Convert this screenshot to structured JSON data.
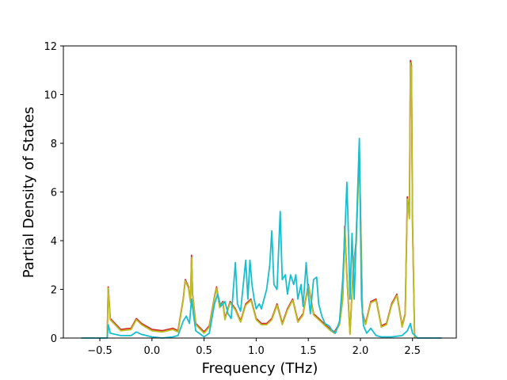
{
  "chart_data": {
    "type": "line",
    "title": "",
    "xlabel": "Frequency (THz)",
    "ylabel": "Partial Density of States",
    "xlim": [
      -0.85,
      2.92
    ],
    "ylim": [
      0,
      12
    ],
    "xticks": [
      -0.5,
      0.0,
      0.5,
      1.0,
      1.5,
      2.0,
      2.5
    ],
    "xtick_labels": [
      "−0.5",
      "0.0",
      "0.5",
      "1.0",
      "1.5",
      "2.0",
      "2.5"
    ],
    "yticks": [
      0,
      2,
      4,
      6,
      8,
      10,
      12
    ],
    "ytick_labels": [
      "0",
      "2",
      "4",
      "6",
      "8",
      "10",
      "12"
    ],
    "grid": false,
    "legend": "none",
    "series": [
      {
        "color": "#d62728",
        "points": [
          [
            -0.43,
            0
          ],
          [
            -0.42,
            2.1
          ],
          [
            -0.4,
            0.8
          ],
          [
            -0.3,
            0.35
          ],
          [
            -0.2,
            0.4
          ],
          [
            -0.15,
            0.8
          ],
          [
            -0.1,
            0.6
          ],
          [
            0.0,
            0.35
          ],
          [
            0.1,
            0.3
          ],
          [
            0.2,
            0.4
          ],
          [
            0.25,
            0.3
          ],
          [
            0.3,
            1.6
          ],
          [
            0.32,
            2.4
          ],
          [
            0.35,
            2.1
          ],
          [
            0.37,
            1.5
          ],
          [
            0.38,
            3.4
          ],
          [
            0.39,
            1.8
          ],
          [
            0.42,
            0.6
          ],
          [
            0.5,
            0.25
          ],
          [
            0.55,
            0.5
          ],
          [
            0.6,
            1.7
          ],
          [
            0.62,
            2.1
          ],
          [
            0.65,
            1.3
          ],
          [
            0.68,
            1.5
          ],
          [
            0.7,
            0.8
          ],
          [
            0.75,
            1.5
          ],
          [
            0.8,
            1.2
          ],
          [
            0.85,
            0.7
          ],
          [
            0.9,
            1.4
          ],
          [
            0.95,
            1.6
          ],
          [
            1.0,
            0.8
          ],
          [
            1.05,
            0.6
          ],
          [
            1.1,
            0.6
          ],
          [
            1.15,
            0.8
          ],
          [
            1.2,
            1.4
          ],
          [
            1.25,
            0.6
          ],
          [
            1.3,
            1.2
          ],
          [
            1.35,
            1.6
          ],
          [
            1.4,
            0.7
          ],
          [
            1.45,
            1.0
          ],
          [
            1.5,
            2.2
          ],
          [
            1.55,
            1.0
          ],
          [
            1.6,
            0.8
          ],
          [
            1.65,
            0.6
          ],
          [
            1.7,
            0.4
          ],
          [
            1.75,
            0.25
          ],
          [
            1.8,
            0.6
          ],
          [
            1.83,
            1.6
          ],
          [
            1.85,
            4.6
          ],
          [
            1.87,
            2.6
          ],
          [
            1.9,
            0.2
          ],
          [
            1.93,
            2.8
          ],
          [
            1.96,
            4.0
          ],
          [
            1.99,
            7.7
          ],
          [
            2.02,
            1.0
          ],
          [
            2.05,
            0.6
          ],
          [
            2.1,
            1.5
          ],
          [
            2.15,
            1.6
          ],
          [
            2.2,
            0.5
          ],
          [
            2.25,
            0.6
          ],
          [
            2.3,
            1.4
          ],
          [
            2.35,
            1.8
          ],
          [
            2.4,
            0.5
          ],
          [
            2.43,
            1.0
          ],
          [
            2.45,
            5.8
          ],
          [
            2.47,
            5.0
          ],
          [
            2.48,
            11.4
          ],
          [
            2.49,
            11.2
          ],
          [
            2.5,
            4.8
          ],
          [
            2.52,
            0.0
          ]
        ]
      },
      {
        "color": "#bcbd22",
        "points": [
          [
            -0.43,
            0
          ],
          [
            -0.42,
            2.05
          ],
          [
            -0.4,
            0.75
          ],
          [
            -0.3,
            0.3
          ],
          [
            -0.2,
            0.35
          ],
          [
            -0.15,
            0.75
          ],
          [
            -0.1,
            0.55
          ],
          [
            0.0,
            0.3
          ],
          [
            0.1,
            0.25
          ],
          [
            0.2,
            0.35
          ],
          [
            0.25,
            0.25
          ],
          [
            0.3,
            1.55
          ],
          [
            0.32,
            2.35
          ],
          [
            0.35,
            2.05
          ],
          [
            0.37,
            1.45
          ],
          [
            0.38,
            3.3
          ],
          [
            0.39,
            1.75
          ],
          [
            0.42,
            0.55
          ],
          [
            0.5,
            0.2
          ],
          [
            0.55,
            0.45
          ],
          [
            0.6,
            1.65
          ],
          [
            0.62,
            2.05
          ],
          [
            0.65,
            1.25
          ],
          [
            0.68,
            1.45
          ],
          [
            0.7,
            0.75
          ],
          [
            0.75,
            1.45
          ],
          [
            0.8,
            1.15
          ],
          [
            0.85,
            0.65
          ],
          [
            0.9,
            1.35
          ],
          [
            0.95,
            1.55
          ],
          [
            1.0,
            0.75
          ],
          [
            1.05,
            0.55
          ],
          [
            1.1,
            0.55
          ],
          [
            1.15,
            0.75
          ],
          [
            1.2,
            1.35
          ],
          [
            1.25,
            0.55
          ],
          [
            1.3,
            1.15
          ],
          [
            1.35,
            1.55
          ],
          [
            1.4,
            0.65
          ],
          [
            1.45,
            0.95
          ],
          [
            1.5,
            2.15
          ],
          [
            1.55,
            0.95
          ],
          [
            1.6,
            0.75
          ],
          [
            1.65,
            0.55
          ],
          [
            1.7,
            0.35
          ],
          [
            1.75,
            0.2
          ],
          [
            1.8,
            0.55
          ],
          [
            1.83,
            1.55
          ],
          [
            1.85,
            4.5
          ],
          [
            1.87,
            2.5
          ],
          [
            1.9,
            0.15
          ],
          [
            1.93,
            2.7
          ],
          [
            1.96,
            3.9
          ],
          [
            1.99,
            7.5
          ],
          [
            2.02,
            0.95
          ],
          [
            2.05,
            0.55
          ],
          [
            2.1,
            1.45
          ],
          [
            2.15,
            1.55
          ],
          [
            2.2,
            0.45
          ],
          [
            2.25,
            0.55
          ],
          [
            2.3,
            1.35
          ],
          [
            2.35,
            1.75
          ],
          [
            2.4,
            0.45
          ],
          [
            2.43,
            0.95
          ],
          [
            2.45,
            5.7
          ],
          [
            2.47,
            4.9
          ],
          [
            2.48,
            11.3
          ],
          [
            2.49,
            11.1
          ],
          [
            2.5,
            4.7
          ],
          [
            2.52,
            0.0
          ]
        ]
      },
      {
        "color": "#17becf",
        "points": [
          [
            -0.68,
            0
          ],
          [
            -0.43,
            0
          ],
          [
            -0.42,
            0.55
          ],
          [
            -0.4,
            0.2
          ],
          [
            -0.3,
            0.1
          ],
          [
            -0.2,
            0.1
          ],
          [
            -0.15,
            0.25
          ],
          [
            -0.1,
            0.15
          ],
          [
            0.0,
            0.05
          ],
          [
            0.1,
            0.0
          ],
          [
            0.2,
            0.05
          ],
          [
            0.25,
            0.1
          ],
          [
            0.3,
            0.7
          ],
          [
            0.33,
            0.9
          ],
          [
            0.36,
            0.6
          ],
          [
            0.38,
            1.6
          ],
          [
            0.4,
            0.9
          ],
          [
            0.42,
            0.3
          ],
          [
            0.5,
            0.05
          ],
          [
            0.55,
            0.2
          ],
          [
            0.6,
            1.4
          ],
          [
            0.63,
            1.8
          ],
          [
            0.66,
            1.3
          ],
          [
            0.7,
            1.5
          ],
          [
            0.73,
            1.0
          ],
          [
            0.76,
            0.8
          ],
          [
            0.8,
            3.1
          ],
          [
            0.82,
            1.4
          ],
          [
            0.85,
            1.1
          ],
          [
            0.9,
            3.2
          ],
          [
            0.92,
            1.6
          ],
          [
            0.94,
            3.2
          ],
          [
            0.96,
            2.2
          ],
          [
            0.98,
            1.6
          ],
          [
            1.0,
            1.2
          ],
          [
            1.03,
            1.4
          ],
          [
            1.05,
            1.2
          ],
          [
            1.1,
            2.0
          ],
          [
            1.13,
            3.0
          ],
          [
            1.15,
            4.4
          ],
          [
            1.17,
            2.2
          ],
          [
            1.2,
            2.0
          ],
          [
            1.23,
            5.2
          ],
          [
            1.25,
            2.4
          ],
          [
            1.28,
            2.6
          ],
          [
            1.3,
            1.8
          ],
          [
            1.33,
            2.6
          ],
          [
            1.36,
            2.2
          ],
          [
            1.38,
            2.6
          ],
          [
            1.4,
            1.6
          ],
          [
            1.43,
            2.2
          ],
          [
            1.45,
            1.3
          ],
          [
            1.48,
            3.1
          ],
          [
            1.5,
            1.8
          ],
          [
            1.52,
            1.0
          ],
          [
            1.55,
            2.4
          ],
          [
            1.58,
            2.5
          ],
          [
            1.6,
            1.4
          ],
          [
            1.63,
            0.9
          ],
          [
            1.66,
            0.6
          ],
          [
            1.7,
            0.5
          ],
          [
            1.73,
            0.3
          ],
          [
            1.76,
            0.2
          ],
          [
            1.8,
            0.7
          ],
          [
            1.83,
            2.4
          ],
          [
            1.85,
            4.2
          ],
          [
            1.87,
            6.4
          ],
          [
            1.88,
            5.0
          ],
          [
            1.9,
            1.6
          ],
          [
            1.92,
            4.3
          ],
          [
            1.94,
            1.6
          ],
          [
            1.97,
            5.6
          ],
          [
            1.99,
            8.2
          ],
          [
            2.01,
            1.6
          ],
          [
            2.03,
            0.5
          ],
          [
            2.06,
            0.2
          ],
          [
            2.1,
            0.4
          ],
          [
            2.15,
            0.1
          ],
          [
            2.2,
            0.05
          ],
          [
            2.3,
            0.05
          ],
          [
            2.4,
            0.1
          ],
          [
            2.45,
            0.3
          ],
          [
            2.48,
            0.6
          ],
          [
            2.5,
            0.2
          ],
          [
            2.55,
            0.0
          ],
          [
            2.78,
            0.0
          ]
        ]
      }
    ]
  }
}
